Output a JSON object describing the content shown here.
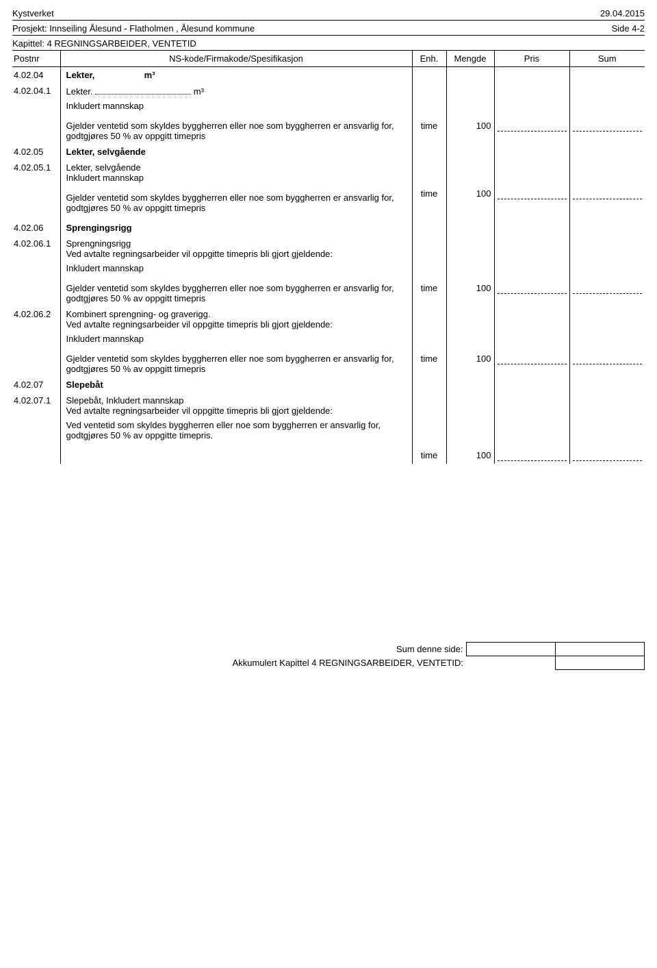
{
  "header": {
    "org": "Kystverket",
    "date": "29.04.2015",
    "project_prefix": "Prosjekt: ",
    "project": "Innseiling Ålesund - Flatholmen , Ålesund kommune",
    "page": "Side 4-2",
    "chapter_prefix": "Kapittel: ",
    "chapter": "4 REGNINGSARBEIDER, VENTETID"
  },
  "columns": {
    "postnr": "Postnr",
    "spec": "NS-kode/Firmakode/Spesifikasjon",
    "enh": "Enh.",
    "mengde": "Mengde",
    "pris": "Pris",
    "sum": "Sum"
  },
  "common": {
    "inkl_mannskap": "Inkludert mannskap",
    "ventetid_text": "Gjelder ventetid som skyldes byggherren eller noe som byggherren er ansvarlig for, godtgjøres 50 % av oppgitt timepris",
    "ved_avtalte": "Ved avtalte regningsarbeider vil oppgitte timepris bli gjort gjeldende:",
    "ved_ventetid_alt": "Ved ventetid som skyldes byggherren eller noe som byggherren er ansvarlig for, godtgjøres 50 % av oppgitte timepris.",
    "unit_time": "time",
    "qty_100": "100"
  },
  "rows": {
    "r1": {
      "postnr": "4.02.04",
      "title": "Lekter,",
      "unit": "m³"
    },
    "r2": {
      "postnr": "4.02.04.1",
      "title": "Lekter.",
      "unit": "m³"
    },
    "r3": {
      "postnr": "4.02.05",
      "title": "Lekter, selvgående"
    },
    "r4": {
      "postnr": "4.02.05.1",
      "title": "Lekter, selvgående",
      "sub": "Inkludert mannskap"
    },
    "r5": {
      "postnr": "4.02.06",
      "title": "Sprengingsrigg"
    },
    "r6": {
      "postnr": "4.02.06.1",
      "title": "Sprengningsrigg"
    },
    "r7": {
      "postnr": "4.02.06.2",
      "title": "Kombinert sprengning- og graverigg."
    },
    "r8": {
      "postnr": "4.02.07",
      "title": "Slepebåt"
    },
    "r9": {
      "postnr": "4.02.07.1",
      "title": "Slepebåt,  Inkludert mannskap"
    }
  },
  "footer": {
    "sum_label": "Sum denne side:",
    "akk_label": "Akkumulert Kapittel 4 REGNINGSARBEIDER, VENTETID:"
  }
}
